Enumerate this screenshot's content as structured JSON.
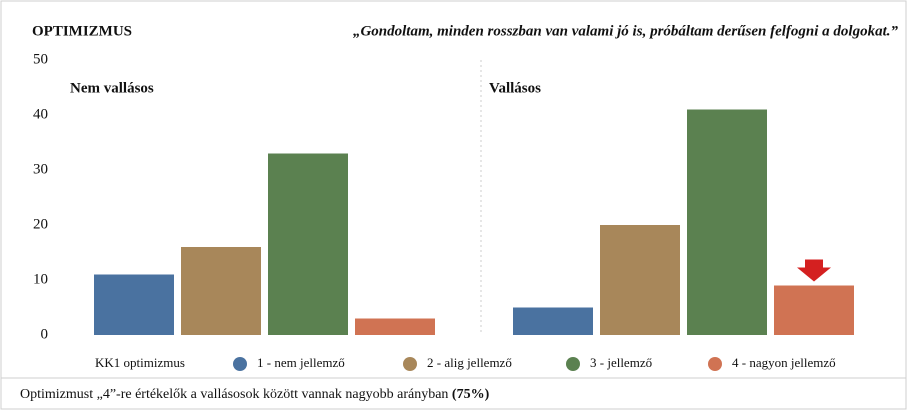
{
  "chart_data": {
    "type": "bar",
    "title": "OPTIMIZMUS",
    "subtitle": "„Gondoltam, minden rosszban van valami jó is, próbáltam derűsen felfogni a dolgokat.”",
    "categories": [
      "Nem vallásos",
      "Vallásos"
    ],
    "legend_title": "KK1 optimizmus",
    "series": [
      {
        "name": "1 - nem jellemző",
        "color": "#4a72a0",
        "values": [
          11,
          5
        ]
      },
      {
        "name": "2 - alig jellemző",
        "color": "#a8875a",
        "values": [
          16,
          20
        ]
      },
      {
        "name": "3 - jellemző",
        "color": "#5b8150",
        "values": [
          33,
          41
        ]
      },
      {
        "name": "4 - nagyon jellemző",
        "color": "#d07353",
        "values": [
          3,
          9
        ]
      }
    ],
    "ylim": [
      0,
      50
    ],
    "yticks": [
      0,
      10,
      20,
      30,
      40,
      50
    ],
    "grid": false,
    "note": "Optimizmust „4”-re értékelők a vallásosok között vannak nagyobb arányban",
    "note_bold": "(75%)"
  }
}
